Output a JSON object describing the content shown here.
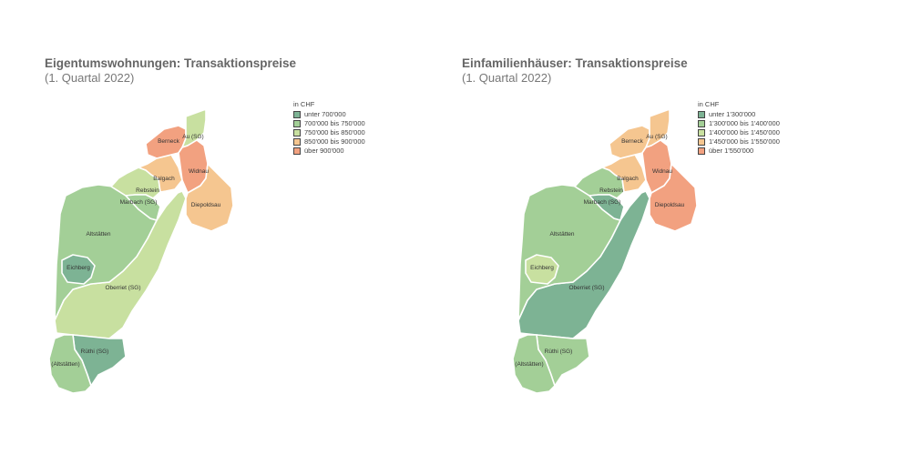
{
  "maps": [
    {
      "title": "Eigentumswohnungen: Transaktionspreise",
      "subtitle": "(1. Quartal 2022)",
      "legend": {
        "unit": "in CHF",
        "items": [
          {
            "label": "unter 700'000",
            "color": "#7db394"
          },
          {
            "label": "700'000 bis 750'000",
            "color": "#a3cf97"
          },
          {
            "label": "750'000 bis 850'000",
            "color": "#c8e0a0"
          },
          {
            "label": "850'000 bis 900'000",
            "color": "#f5c690"
          },
          {
            "label": "über 900'000",
            "color": "#f2a180"
          }
        ]
      },
      "regions": {
        "berneck": {
          "label": "Berneck",
          "class": 4
        },
        "au": {
          "label": "Au (SG)",
          "class": 2
        },
        "widnau": {
          "label": "Widnau",
          "class": 4
        },
        "balgach": {
          "label": "Balgach",
          "class": 3
        },
        "diepoldsau": {
          "label": "Diepoldsau",
          "class": 3
        },
        "rebstein": {
          "label": "Rebstein",
          "class": 2
        },
        "marbach": {
          "label": "Marbach (SG)",
          "class": 1
        },
        "altstaetten": {
          "label": "Altstätten",
          "class": 1
        },
        "eichberg": {
          "label": "Eichberg",
          "class": 0
        },
        "oberriet": {
          "label": "Oberriet (SG)",
          "class": 2
        },
        "ruethi": {
          "label": "Rüthi (SG)",
          "class": 0
        },
        "altstaetten_exkl": {
          "label": "(Altstätten)",
          "class": 1
        }
      }
    },
    {
      "title": "Einfamilienhäuser: Transaktionspreise",
      "subtitle": "(1. Quartal 2022)",
      "legend": {
        "unit": "in CHF",
        "items": [
          {
            "label": "unter 1'300'000",
            "color": "#7db394"
          },
          {
            "label": "1'300'000 bis 1'400'000",
            "color": "#a3cf97"
          },
          {
            "label": "1'400'000 bis 1'450'000",
            "color": "#c8e0a0"
          },
          {
            "label": "1'450'000 bis 1'550'000",
            "color": "#f5c690"
          },
          {
            "label": "über 1'550'000",
            "color": "#f2a180"
          }
        ]
      },
      "regions": {
        "berneck": {
          "label": "Berneck",
          "class": 3
        },
        "au": {
          "label": "Au (SG)",
          "class": 3
        },
        "widnau": {
          "label": "Widnau",
          "class": 4
        },
        "balgach": {
          "label": "Balgach",
          "class": 3
        },
        "diepoldsau": {
          "label": "Diepoldsau",
          "class": 4
        },
        "rebstein": {
          "label": "Rebstein",
          "class": 1
        },
        "marbach": {
          "label": "Marbach (SG)",
          "class": 0
        },
        "altstaetten": {
          "label": "Altstätten",
          "class": 1
        },
        "eichberg": {
          "label": "Eichberg",
          "class": 2
        },
        "oberriet": {
          "label": "Oberriet (SG)",
          "class": 0
        },
        "ruethi": {
          "label": "Rüthi (SG)",
          "class": 1
        },
        "altstaetten_exkl": {
          "label": "(Altstätten)",
          "class": 1
        }
      }
    }
  ]
}
